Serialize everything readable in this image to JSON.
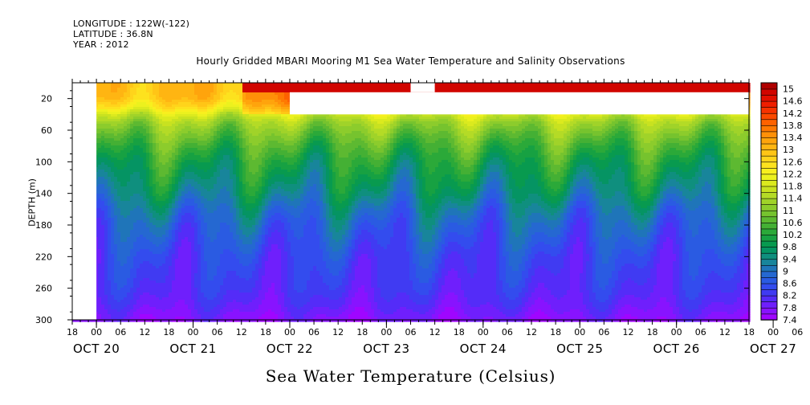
{
  "header": {
    "longitude": "LONGITUDE : 122W(-122)",
    "latitude": "LATITUDE : 36.8N",
    "year": "YEAR : 2012"
  },
  "chart_data": {
    "type": "heatmap",
    "title": "Hourly Gridded MBARI Mooring M1 Sea Water Temperature and Salinity Observations",
    "xlabel": "Sea Water Temperature (Celsius)",
    "ylabel": "DEPTH (m)",
    "ylim": [
      300,
      0
    ],
    "y_ticks": [
      20,
      60,
      100,
      140,
      180,
      220,
      260,
      300
    ],
    "x_hour_ticks": [
      "18",
      "00",
      "06",
      "12",
      "18",
      "00",
      "06",
      "12",
      "18",
      "00",
      "06",
      "12",
      "18",
      "00",
      "06",
      "12",
      "18",
      "00",
      "06",
      "12",
      "18",
      "00",
      "06",
      "12",
      "18",
      "00",
      "06",
      "12",
      "18",
      "00",
      "06",
      "12",
      "18"
    ],
    "x_day_labels": [
      "OCT 20",
      "OCT 21",
      "OCT 22",
      "OCT 23",
      "OCT 24",
      "OCT 25",
      "OCT 26",
      "OCT 27"
    ],
    "x_start": "2012-10-20 18:00",
    "x_end": "2012-10-27 18:00",
    "colorbar_labels": [
      "15",
      "14.6",
      "14.2",
      "13.8",
      "13.4",
      "13",
      "12.6",
      "12.2",
      "11.8",
      "11.4",
      "11",
      "10.6",
      "10.2",
      "9.8",
      "9.4",
      "9",
      "8.6",
      "8.2",
      "7.8",
      "7.4"
    ],
    "colorbar_range": [
      7.4,
      15.2
    ],
    "colorbar_step": 0.2,
    "profile_depth_m": [
      0,
      10,
      20,
      30,
      40,
      50,
      60,
      80,
      100,
      120,
      140,
      160,
      180,
      200,
      220,
      240,
      260,
      280,
      300
    ],
    "profile_temp_c": [
      13.0,
      13.0,
      12.9,
      12.5,
      11.8,
      11.3,
      11.0,
      10.5,
      10.1,
      9.8,
      9.5,
      9.1,
      8.8,
      8.6,
      8.4,
      8.3,
      8.2,
      8.0,
      7.7
    ],
    "surface_temp_c": 15.0,
    "surface_start": "2012-10-22 12:00",
    "missing": [
      {
        "start": "2012-10-20 18:00",
        "end": "2012-10-21 00:00",
        "depth": [
          0,
          300
        ]
      },
      {
        "start": "2012-10-23 00:00",
        "end": "2012-10-27 18:00",
        "depth": [
          12,
          40
        ]
      },
      {
        "start": "2012-10-24 06:00",
        "end": "2012-10-24 12:00",
        "depth": [
          0,
          12
        ]
      }
    ]
  }
}
